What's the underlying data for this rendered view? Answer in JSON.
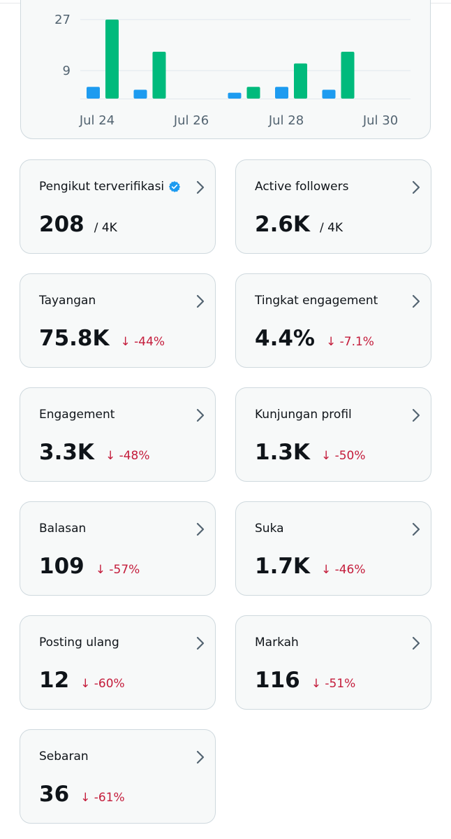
{
  "chart_data": {
    "type": "bar",
    "categories": [
      "Jul 24",
      "Jul 25",
      "Jul 26",
      "Jul 27",
      "Jul 28",
      "Jul 29",
      "Jul 30"
    ],
    "series": [
      {
        "values": [
          4,
          3,
          0,
          2,
          4,
          3,
          0
        ]
      },
      {
        "values": [
          27,
          16,
          0,
          4,
          12,
          16,
          0
        ]
      }
    ],
    "y_ticks": [
      "27",
      "9"
    ],
    "x_tick_labels": [
      "Jul 24",
      "Jul 26",
      "Jul 28",
      "Jul 30"
    ],
    "grid": true,
    "colors": {
      "series_a": "#1d9bf0",
      "series_b": "#00ba7c"
    }
  },
  "cards": [
    {
      "label": "Pengikut terverifikasi",
      "value": "208",
      "suffix": "/ 4K",
      "verified": true
    },
    {
      "label": "Active followers",
      "value": "2.6K",
      "suffix": "/ 4K"
    },
    {
      "label": "Tayangan",
      "value": "75.8K",
      "change": "↓ -44%"
    },
    {
      "label": "Tingkat engagement",
      "value": "4.4%",
      "change": "↓ -7.1%"
    },
    {
      "label": "Engagement",
      "value": "3.3K",
      "change": "↓ -48%"
    },
    {
      "label": "Kunjungan profil",
      "value": "1.3K",
      "change": "↓ -50%"
    },
    {
      "label": "Balasan",
      "value": "109",
      "change": "↓ -57%"
    },
    {
      "label": "Suka",
      "value": "1.7K",
      "change": "↓ -46%"
    },
    {
      "label": "Posting ulang",
      "value": "12",
      "change": "↓ -60%"
    },
    {
      "label": "Markah",
      "value": "116",
      "change": "↓ -51%"
    },
    {
      "label": "Sebaran",
      "value": "36",
      "change": "↓ -61%"
    }
  ],
  "icons": {
    "verified": "verified-badge-icon",
    "chevron": "chevron-right-icon"
  },
  "colors": {
    "negative_change": "#c41c3b",
    "verified": "#1d9bf0"
  }
}
